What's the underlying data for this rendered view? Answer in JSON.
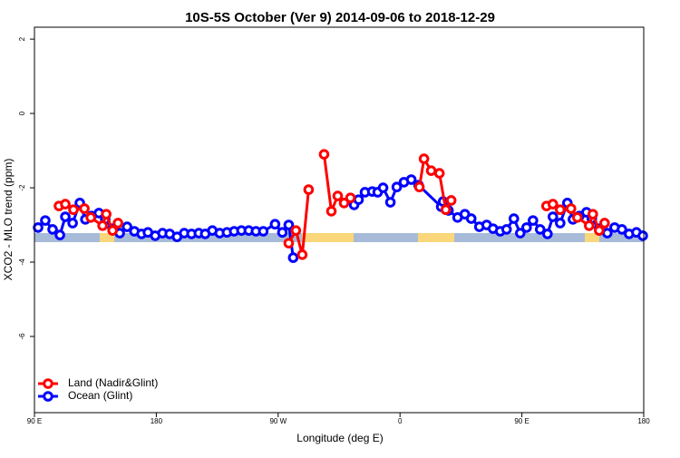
{
  "chart_data": {
    "type": "line",
    "title": "10S-5S October (Ver 9)   2014-09-06 to 2018-12-29",
    "x_label": "Longitude (deg E)",
    "y_label": "XCO2 - MLO trend (ppm)",
    "xlim": [
      90,
      540
    ],
    "ylim": [
      -8.05,
      2.32
    ],
    "xticks": [
      {
        "value": 90,
        "label": "90 E"
      },
      180,
      {
        "value": 270,
        "label": "90 W"
      },
      {
        "value": 360,
        "label": "0"
      },
      {
        "value": 450,
        "label": "90 E"
      },
      {
        "value": 540,
        "label": "180"
      }
    ],
    "yticks": [
      -6,
      -4,
      -2,
      0,
      2
    ],
    "legend": "bottom-left",
    "series": [
      {
        "name": "Ocean (Glint)",
        "color": "#0000ff",
        "x": [
          92.7,
          98.0,
          103.4,
          108.8,
          112.8,
          118.2,
          123.5,
          127.6,
          132.2,
          137.6,
          142.3,
          147.7,
          153.0,
          158.4,
          163.8,
          169.1,
          173.8,
          179.2,
          184.6,
          189.9,
          195.3,
          200.6,
          206.0,
          211.4,
          216.1,
          221.4,
          226.8,
          232.2,
          237.5,
          242.9,
          248.3,
          253.6,
          259.0,
          267.7,
          273.1,
          277.8,
          281.1,
          null,
          326.1,
          329.4,
          334.1,
          339.5,
          343.5,
          347.5,
          352.9,
          357.6,
          362.9,
          368.3,
          373.7,
          390.4,
          391.8,
          395.8,
          402.5,
          407.9,
          412.6,
          418.6,
          424.0,
          428.7,
          434.0,
          438.7,
          444.1,
          448.8,
          453.5,
          458.2,
          463.5,
          468.9,
          472.9,
          478.3,
          483.6,
          487.7,
          492.4,
          497.7,
          501.7,
          507.1,
          513.1,
          518.5,
          523.9,
          529.2,
          534.6,
          539.3
        ],
        "values": [
          -3.07,
          -2.88,
          -3.12,
          -3.27,
          -2.78,
          -2.95,
          -2.41,
          -2.85,
          -2.76,
          -2.68,
          -2.85,
          -3.1,
          -3.22,
          -3.05,
          -3.17,
          -3.24,
          -3.2,
          -3.29,
          -3.22,
          -3.24,
          -3.32,
          -3.22,
          -3.24,
          -3.22,
          -3.24,
          -3.15,
          -3.22,
          -3.2,
          -3.17,
          -3.15,
          -3.15,
          -3.17,
          -3.17,
          -2.98,
          -3.2,
          -3.0,
          -3.88,
          null,
          -2.46,
          -2.32,
          -2.12,
          -2.1,
          -2.12,
          -2.0,
          -2.39,
          -1.98,
          -1.85,
          -1.78,
          -1.93,
          -2.51,
          -2.37,
          -2.61,
          -2.8,
          -2.71,
          -2.83,
          -3.05,
          -3.0,
          -3.1,
          -3.17,
          -3.12,
          -2.83,
          -3.22,
          -3.07,
          -2.88,
          -3.12,
          -3.24,
          -2.78,
          -2.95,
          -2.41,
          -2.85,
          -2.76,
          -2.66,
          -2.83,
          -3.1,
          -3.22,
          -3.07,
          -3.12,
          -3.24,
          -3.2,
          -3.29
        ]
      },
      {
        "name": "Land (Nadir&Glint)",
        "color": "#ff0000",
        "x": [
          108.1,
          112.8,
          118.8,
          126.9,
          131.6,
          140.3,
          143.0,
          147.7,
          151.7,
          null,
          277.8,
          283.1,
          287.8,
          292.5,
          null,
          303.9,
          309.3,
          314.0,
          318.7,
          323.4,
          null,
          374.3,
          377.7,
          383.0,
          389.1,
          393.8,
          397.8,
          null,
          468.2,
          472.9,
          478.3,
          486.3,
          491.0,
          499.7,
          502.4,
          507.1,
          511.1
        ],
        "values": [
          -2.49,
          -2.44,
          -2.59,
          -2.56,
          -2.8,
          -3.02,
          -2.71,
          -3.15,
          -2.95,
          null,
          -3.49,
          -3.15,
          -3.8,
          -2.05,
          null,
          -1.1,
          -2.63,
          -2.22,
          -2.41,
          -2.27,
          null,
          -1.98,
          -1.22,
          -1.54,
          -1.61,
          -2.59,
          -2.34,
          null,
          -2.49,
          -2.44,
          -2.59,
          -2.56,
          -2.8,
          -3.02,
          -2.71,
          -3.15,
          -2.95
        ]
      }
    ]
  }
}
